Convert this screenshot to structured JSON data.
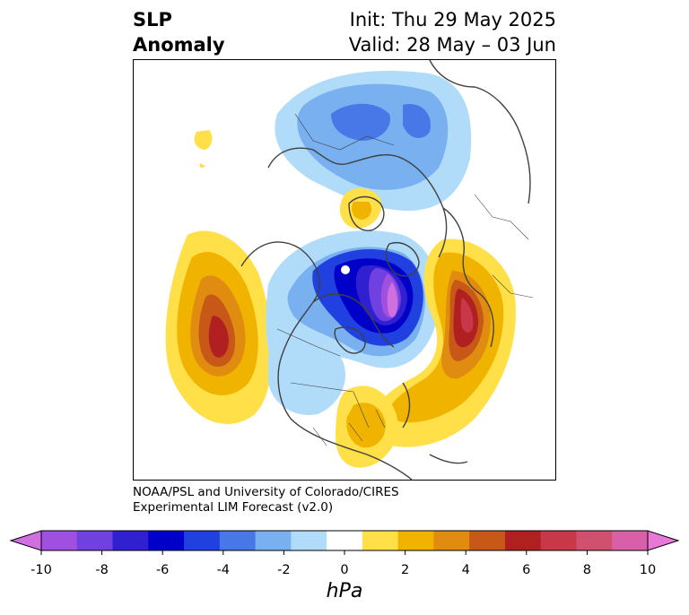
{
  "title": {
    "line1": "SLP",
    "line2": "Anomaly"
  },
  "init": {
    "line1": "Init: Thu 29 May 2025",
    "line2": "Valid: 28 May – 03 Jun"
  },
  "credit": {
    "line1": "NOAA/PSL and University of Colorado/CIRES",
    "line2": "Experimental LIM Forecast (v2.0)"
  },
  "colorbar": {
    "unit": "hPa",
    "tick_labels": [
      "-10",
      "-8",
      "-6",
      "-4",
      "-2",
      "0",
      "2",
      "4",
      "6",
      "8",
      "10"
    ],
    "colors": [
      "#d070e0",
      "#a050e0",
      "#7040e0",
      "#3020d0",
      "#0000c8",
      "#2040e0",
      "#4878e8",
      "#78b0f0",
      "#b0dcfa",
      "#ffffff",
      "#ffe048",
      "#f0b400",
      "#e08c10",
      "#c85818",
      "#b02020",
      "#c83848",
      "#d05070",
      "#d860a8",
      "#e878d8"
    ]
  },
  "map_data": {
    "projection": "north polar stereographic",
    "variable": "sea level pressure anomaly",
    "colors": {
      "pos_light": "#ffe048",
      "pos_mid": "#f0b400",
      "pos_orange": "#e08c10",
      "pos_dark": "#c85818",
      "pos_red": "#b02020",
      "pos_crimson": "#c83848",
      "neg_light": "#b0dcfa",
      "neg_blue1": "#78b0f0",
      "neg_blue2": "#4878e8",
      "neg_blue3": "#2040e0",
      "neg_navy": "#0000c8",
      "neg_indigo": "#3020d0",
      "neg_violet": "#7040e0",
      "neg_purple": "#a050e0",
      "neg_magenta": "#d070e0",
      "coast": "#404040"
    }
  }
}
